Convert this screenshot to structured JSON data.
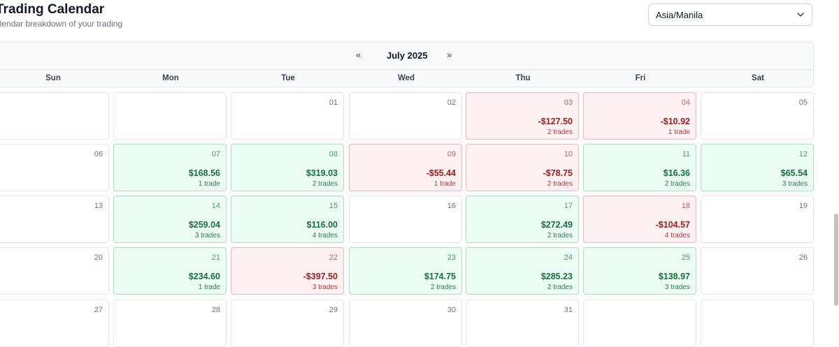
{
  "header": {
    "title": "Trading Calendar",
    "subtitle": "alendar breakdown of your trading"
  },
  "timezone": {
    "value": "Asia/Manila"
  },
  "calendar": {
    "month_label": "July 2025",
    "prev_label": "«",
    "next_label": "»",
    "weekdays": [
      "Sun",
      "Mon",
      "Tue",
      "Wed",
      "Thu",
      "Fri",
      "Sat"
    ],
    "weeks": [
      [
        {
          "day": ""
        },
        {
          "day": ""
        },
        {
          "day": "01"
        },
        {
          "day": "02"
        },
        {
          "day": "03",
          "pnl": "-$127.50",
          "trades": "2 trades",
          "status": "loss"
        },
        {
          "day": "04",
          "pnl": "-$10.92",
          "trades": "1 trade",
          "status": "loss"
        },
        {
          "day": "05"
        }
      ],
      [
        {
          "day": "06"
        },
        {
          "day": "07",
          "pnl": "$168.56",
          "trades": "1 trade",
          "status": "profit"
        },
        {
          "day": "08",
          "pnl": "$319.03",
          "trades": "2 trades",
          "status": "profit"
        },
        {
          "day": "09",
          "pnl": "-$55.44",
          "trades": "1 trade",
          "status": "loss"
        },
        {
          "day": "10",
          "pnl": "-$78.75",
          "trades": "2 trades",
          "status": "loss"
        },
        {
          "day": "11",
          "pnl": "$16.36",
          "trades": "2 trades",
          "status": "profit"
        },
        {
          "day": "12",
          "pnl": "$65.54",
          "trades": "3 trades",
          "status": "profit"
        }
      ],
      [
        {
          "day": "13"
        },
        {
          "day": "14",
          "pnl": "$259.04",
          "trades": "3 trades",
          "status": "profit"
        },
        {
          "day": "15",
          "pnl": "$116.00",
          "trades": "4 trades",
          "status": "profit"
        },
        {
          "day": "16"
        },
        {
          "day": "17",
          "pnl": "$272.49",
          "trades": "2 trades",
          "status": "profit"
        },
        {
          "day": "18",
          "pnl": "-$104.57",
          "trades": "4 trades",
          "status": "loss"
        },
        {
          "day": "19"
        }
      ],
      [
        {
          "day": "20"
        },
        {
          "day": "21",
          "pnl": "$234.60",
          "trades": "1 trade",
          "status": "profit"
        },
        {
          "day": "22",
          "pnl": "-$397.50",
          "trades": "3 trades",
          "status": "loss"
        },
        {
          "day": "23",
          "pnl": "$174.75",
          "trades": "2 trades",
          "status": "profit"
        },
        {
          "day": "24",
          "pnl": "$285.23",
          "trades": "2 trades",
          "status": "profit"
        },
        {
          "day": "25",
          "pnl": "$138.97",
          "trades": "3 trades",
          "status": "profit"
        },
        {
          "day": "26"
        }
      ],
      [
        {
          "day": "27"
        },
        {
          "day": "28"
        },
        {
          "day": "29"
        },
        {
          "day": "30"
        },
        {
          "day": "31"
        },
        {
          "day": ""
        },
        {
          "day": ""
        }
      ]
    ]
  },
  "colors": {
    "profit_bg": "#ecfdf3",
    "profit_text": "#15703f",
    "loss_bg": "#fef1f1",
    "loss_text": "#a11d1d"
  },
  "icons": {
    "select_chevron": "chevron-down-icon"
  }
}
